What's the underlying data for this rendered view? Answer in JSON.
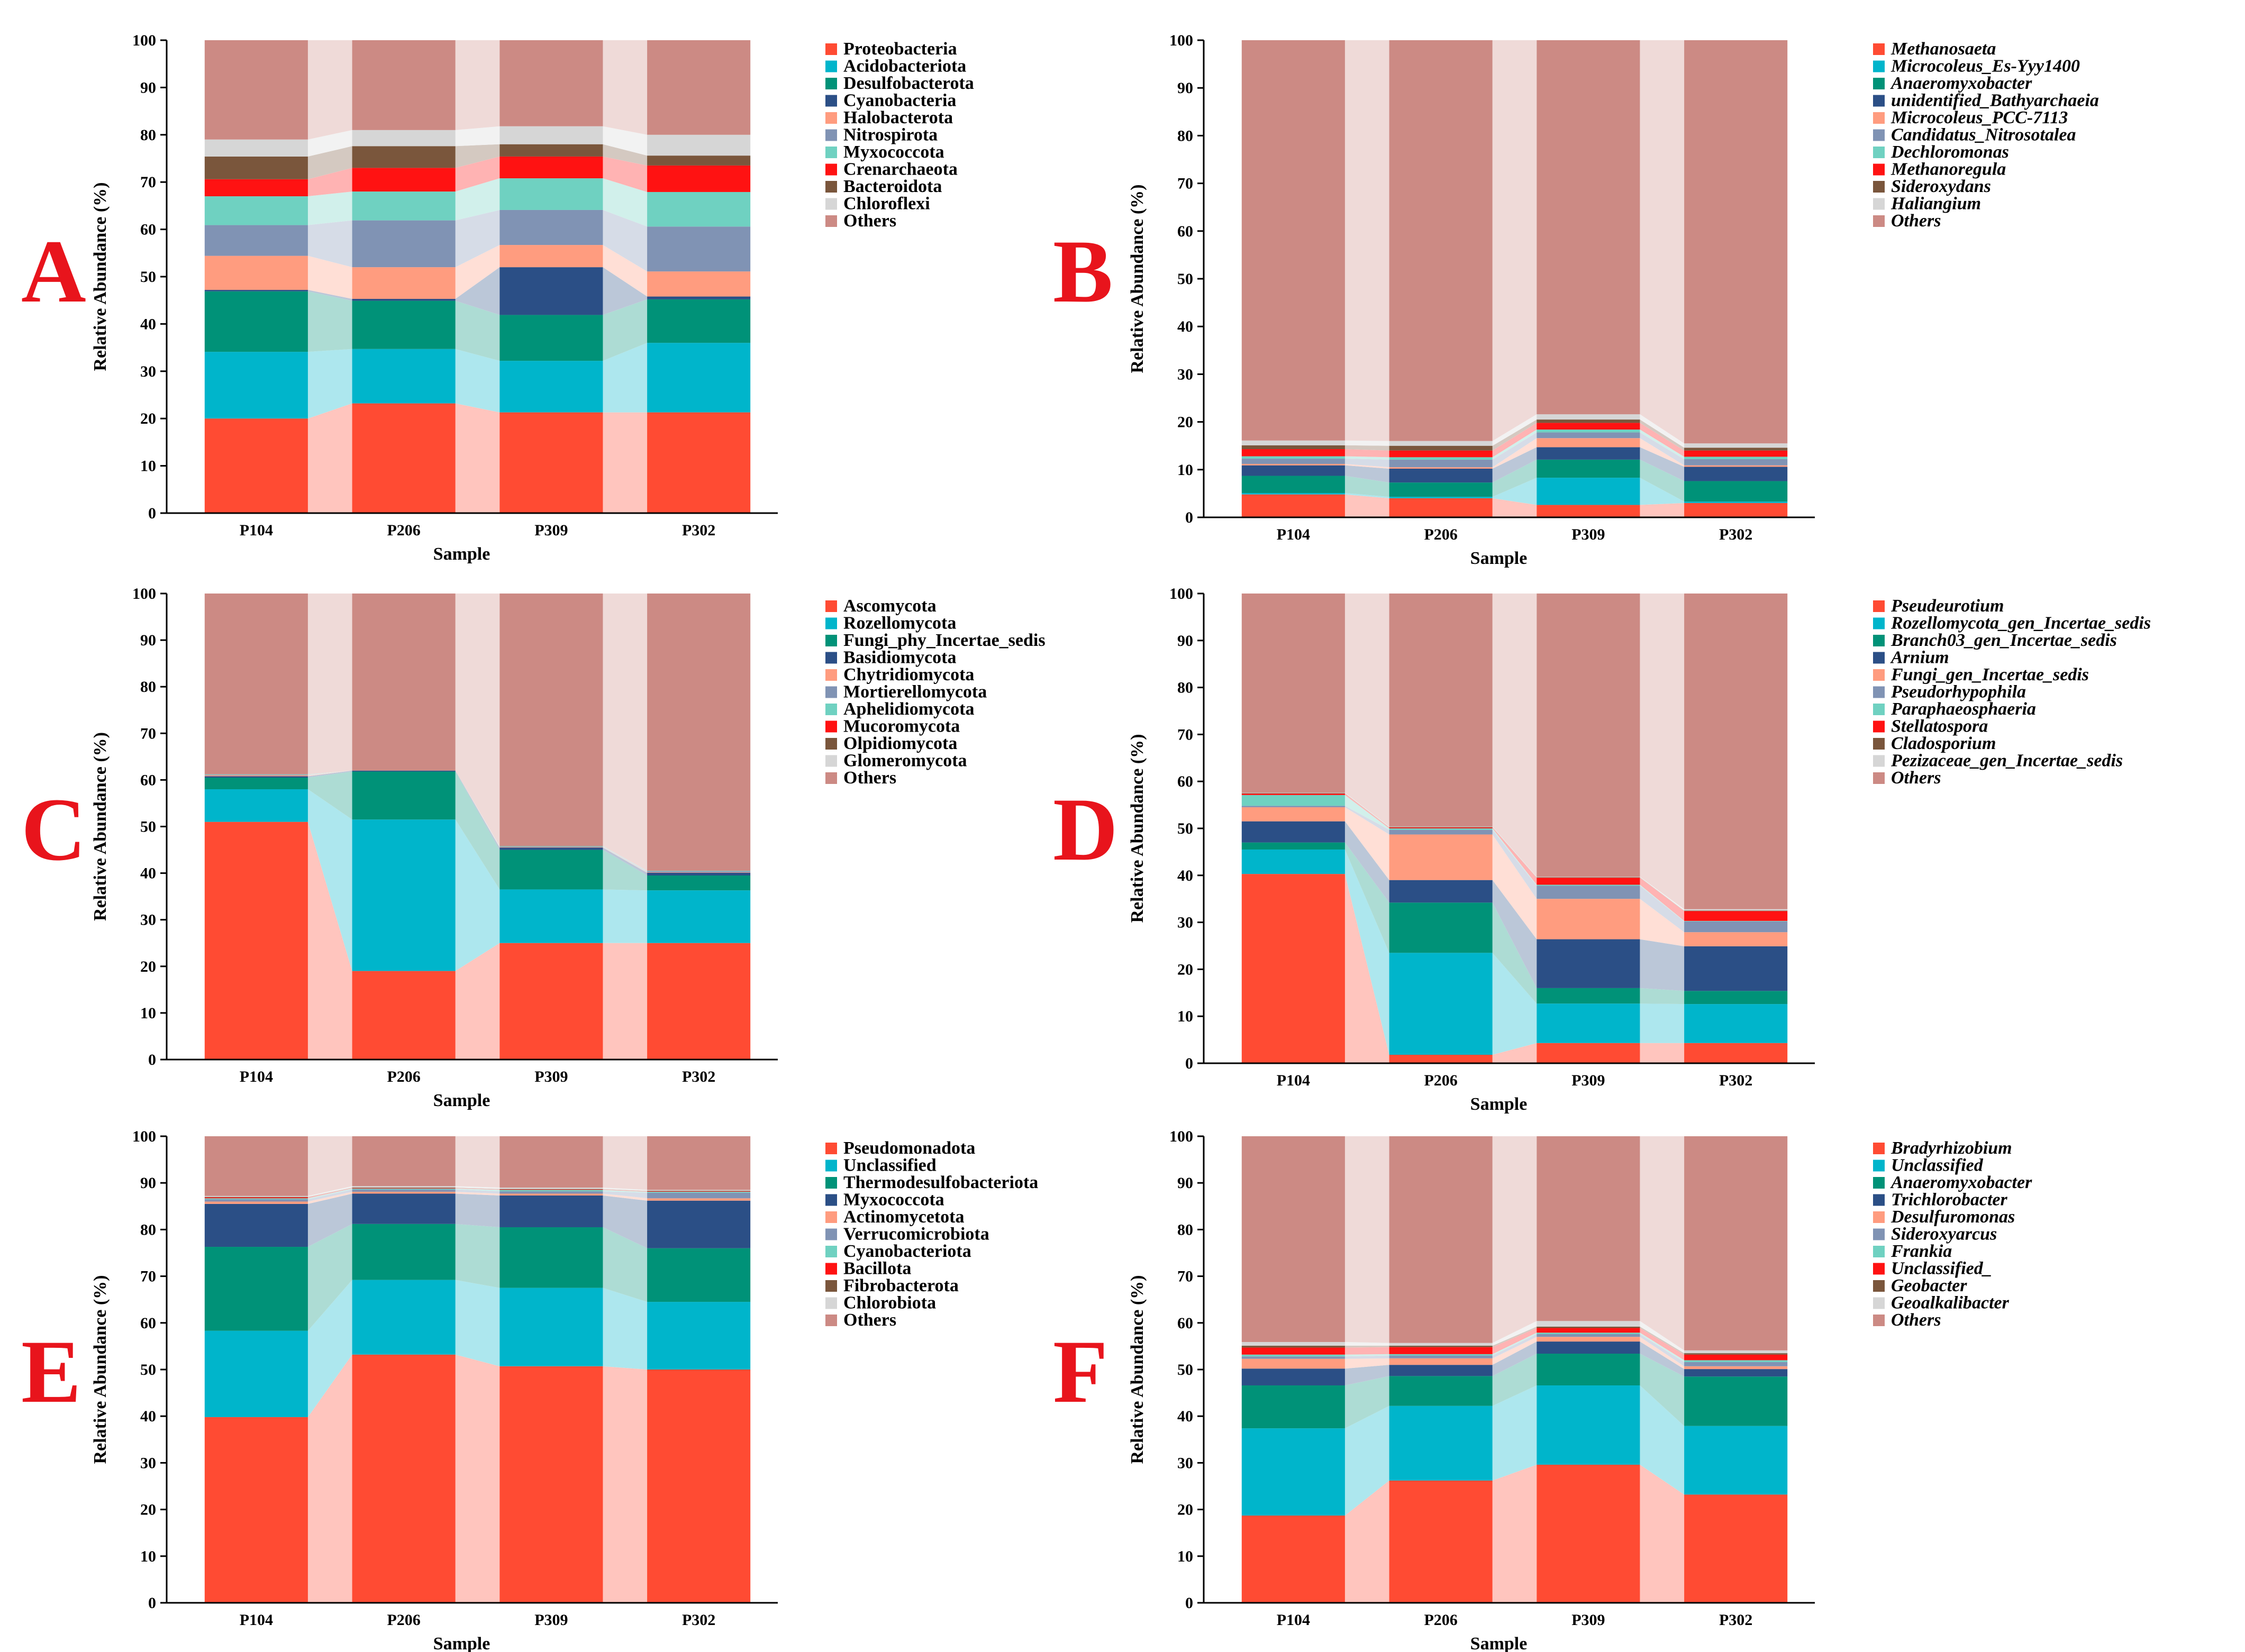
{
  "categories": [
    "P104",
    "P206",
    "P309",
    "P302"
  ],
  "axis": {
    "xlabel": "Sample",
    "ylabel": "Relative Abundance (%)",
    "ylim": [
      0,
      100
    ],
    "ticks": [
      0,
      10,
      20,
      30,
      40,
      50,
      60,
      70,
      80,
      90,
      100
    ]
  },
  "colors": [
    "#ff4b33",
    "#00b5cb",
    "#009278",
    "#2b4f86",
    "#ff9c7f",
    "#8093b4",
    "#6fd1c1",
    "#ff1212",
    "#7a563c",
    "#d6d6d6",
    "#cc8a84"
  ],
  "chart_data": [
    {
      "panel": "A",
      "type": "bar",
      "stacked": true,
      "italic_legend": false,
      "title": "",
      "xlabel": "Sample",
      "ylabel": "Relative Abundance (%)",
      "ylim": [
        0,
        100
      ],
      "categories": [
        "P104",
        "P206",
        "P309",
        "P302"
      ],
      "series": [
        {
          "name": "Proteobacteria",
          "values": [
            20.0,
            23.2,
            21.3,
            21.3
          ]
        },
        {
          "name": "Acidobacteriota",
          "values": [
            14.1,
            11.5,
            10.9,
            14.7
          ]
        },
        {
          "name": "Desulfobacterota",
          "values": [
            12.8,
            10.2,
            9.7,
            9.2
          ]
        },
        {
          "name": "Cyanobacteria",
          "values": [
            0.3,
            0.4,
            10.1,
            0.6
          ]
        },
        {
          "name": "Halobacterota",
          "values": [
            7.2,
            6.7,
            4.7,
            5.3
          ]
        },
        {
          "name": "Nitrospirota",
          "values": [
            6.5,
            9.9,
            7.4,
            9.5
          ]
        },
        {
          "name": "Myxococcota",
          "values": [
            6.1,
            6.1,
            6.7,
            7.3
          ]
        },
        {
          "name": "Crenarchaeota",
          "values": [
            3.6,
            5.0,
            4.6,
            5.6
          ]
        },
        {
          "name": "Bacteroidota",
          "values": [
            4.8,
            4.6,
            2.6,
            2.1
          ]
        },
        {
          "name": "Chloroflexi",
          "values": [
            3.6,
            3.4,
            3.8,
            4.4
          ]
        },
        {
          "name": "Others",
          "values": [
            21.0,
            19.0,
            18.2,
            20.0
          ]
        }
      ]
    },
    {
      "panel": "B",
      "type": "bar",
      "stacked": true,
      "italic_legend": true,
      "title": "",
      "xlabel": "Sample",
      "ylabel": "Relative Abundance (%)",
      "ylim": [
        0,
        100
      ],
      "categories": [
        "P104",
        "P206",
        "P309",
        "P302"
      ],
      "series": [
        {
          "name": "Methanosaeta",
          "values": [
            4.8,
            4.0,
            2.6,
            3.0
          ]
        },
        {
          "name": "Microcoleus_Es-Yyy1400",
          "values": [
            0.3,
            0.3,
            5.7,
            0.3
          ]
        },
        {
          "name": "Anaeromyxobacter",
          "values": [
            3.6,
            3.0,
            3.8,
            4.3
          ]
        },
        {
          "name": "unidentified_Bathyarchaeia",
          "values": [
            2.2,
            2.9,
            2.6,
            3.0
          ]
        },
        {
          "name": "Microcoleus_PCC-7113",
          "values": [
            0.3,
            0.3,
            1.9,
            0.3
          ]
        },
        {
          "name": "Candidatus_Nitrosotalea",
          "values": [
            1.1,
            1.6,
            1.2,
            1.3
          ]
        },
        {
          "name": "Dechloromonas",
          "values": [
            0.5,
            0.5,
            0.6,
            0.5
          ]
        },
        {
          "name": "Methanoregula",
          "values": [
            1.5,
            1.4,
            1.4,
            1.3
          ]
        },
        {
          "name": "Sideroxydans",
          "values": [
            0.8,
            1.0,
            0.7,
            0.6
          ]
        },
        {
          "name": "Haliangium",
          "values": [
            1.0,
            1.0,
            1.1,
            0.9
          ]
        },
        {
          "name": "Others",
          "values": [
            83.9,
            84.0,
            78.4,
            84.5
          ]
        }
      ]
    },
    {
      "panel": "C",
      "type": "bar",
      "stacked": true,
      "italic_legend": false,
      "title": "",
      "xlabel": "Sample",
      "ylabel": "Relative Abundance (%)",
      "ylim": [
        0,
        100
      ],
      "categories": [
        "P104",
        "P206",
        "P309",
        "P302"
      ],
      "series": [
        {
          "name": "Ascomycota",
          "values": [
            51.0,
            19.0,
            25.0,
            25.0
          ]
        },
        {
          "name": "Rozellomycota",
          "values": [
            7.0,
            32.5,
            11.5,
            11.3
          ]
        },
        {
          "name": "Fungi_phy_Incertae_sedis",
          "values": [
            2.5,
            10.3,
            8.5,
            3.2
          ]
        },
        {
          "name": "Basidiomycota",
          "values": [
            0.3,
            0.2,
            0.5,
            0.6
          ]
        },
        {
          "name": "Chytridiomycota",
          "values": [
            0.2,
            0.0,
            0.1,
            0.1
          ]
        },
        {
          "name": "Mortierellomycota",
          "values": [
            0.1,
            0.0,
            0.1,
            0.2
          ]
        },
        {
          "name": "Aphelidiomycota",
          "values": [
            0.1,
            0.0,
            0.1,
            0.1
          ]
        },
        {
          "name": "Mucoromycota",
          "values": [
            0.0,
            0.0,
            0.0,
            0.0
          ]
        },
        {
          "name": "Olpidiomycota",
          "values": [
            0.0,
            0.0,
            0.0,
            0.0
          ]
        },
        {
          "name": "Glomeromycota",
          "values": [
            0.0,
            0.0,
            0.0,
            0.0
          ]
        },
        {
          "name": "Others",
          "values": [
            38.8,
            38.0,
            54.2,
            59.5
          ]
        }
      ]
    },
    {
      "panel": "D",
      "type": "bar",
      "stacked": true,
      "italic_legend": true,
      "title": "",
      "xlabel": "Sample",
      "ylabel": "Relative Abundance (%)",
      "ylim": [
        0,
        100
      ],
      "categories": [
        "P104",
        "P206",
        "P309",
        "P302"
      ],
      "series": [
        {
          "name": "Pseudeurotium",
          "values": [
            40.3,
            1.8,
            4.3,
            4.3
          ]
        },
        {
          "name": "Rozellomycota_gen_Incertae_sedis",
          "values": [
            5.2,
            21.7,
            8.4,
            8.3
          ]
        },
        {
          "name": "Branch03_gen_Incertae_sedis",
          "values": [
            1.5,
            10.7,
            3.3,
            2.8
          ]
        },
        {
          "name": "Arnium",
          "values": [
            4.5,
            4.8,
            10.4,
            9.5
          ]
        },
        {
          "name": "Fungi_gen_Incertae_sedis",
          "values": [
            3.0,
            9.7,
            8.6,
            3.0
          ]
        },
        {
          "name": "Pseudorhypophila",
          "values": [
            0.3,
            1.0,
            2.8,
            2.3
          ]
        },
        {
          "name": "Paraphaeosphaeria",
          "values": [
            2.3,
            0.3,
            0.2,
            0.1
          ]
        },
        {
          "name": "Stellatospora",
          "values": [
            0.3,
            0.2,
            1.5,
            2.1
          ]
        },
        {
          "name": "Cladosporium",
          "values": [
            0.1,
            0.1,
            0.1,
            0.1
          ]
        },
        {
          "name": "Pezizaceae_gen_Incertae_sedis",
          "values": [
            0.1,
            0.1,
            0.1,
            0.3
          ]
        },
        {
          "name": "Others",
          "values": [
            42.4,
            49.6,
            60.3,
            67.2
          ]
        }
      ]
    },
    {
      "panel": "E",
      "type": "bar",
      "stacked": true,
      "italic_legend": false,
      "title": "",
      "xlabel": "Sample",
      "ylabel": "Relative Abundance (%)",
      "ylim": [
        0,
        100
      ],
      "categories": [
        "P104",
        "P206",
        "P309",
        "P302"
      ],
      "series": [
        {
          "name": "Pseudomonadota",
          "values": [
            39.8,
            53.2,
            50.7,
            50.0
          ]
        },
        {
          "name": "Unclassified",
          "values": [
            18.5,
            16.0,
            16.8,
            14.5
          ]
        },
        {
          "name": "Thermodesulfobacteriota",
          "values": [
            18.0,
            12.0,
            13.0,
            11.5
          ]
        },
        {
          "name": "Myxococcota",
          "values": [
            9.2,
            6.5,
            6.8,
            10.2
          ]
        },
        {
          "name": "Actinomycetota",
          "values": [
            0.5,
            0.4,
            0.4,
            0.5
          ]
        },
        {
          "name": "Verrucomicrobiota",
          "values": [
            0.5,
            0.5,
            0.5,
            1.2
          ]
        },
        {
          "name": "Cyanobacteriota",
          "values": [
            0.2,
            0.2,
            0.3,
            0.2
          ]
        },
        {
          "name": "Bacillota",
          "values": [
            0.2,
            0.1,
            0.1,
            0.1
          ]
        },
        {
          "name": "Fibrobacterota",
          "values": [
            0.1,
            0.1,
            0.1,
            0.1
          ]
        },
        {
          "name": "Chlorobiota",
          "values": [
            0.2,
            0.3,
            0.3,
            0.2
          ]
        },
        {
          "name": "Others",
          "values": [
            12.8,
            10.7,
            11.0,
            11.5
          ]
        }
      ]
    },
    {
      "panel": "F",
      "type": "bar",
      "stacked": true,
      "italic_legend": true,
      "title": "",
      "xlabel": "Sample",
      "ylabel": "Relative Abundance (%)",
      "ylim": [
        0,
        100
      ],
      "categories": [
        "P104",
        "P206",
        "P309",
        "P302"
      ],
      "series": [
        {
          "name": "Bradyrhizobium",
          "values": [
            18.7,
            26.2,
            29.6,
            23.2
          ]
        },
        {
          "name": "Unclassified",
          "values": [
            18.7,
            16.0,
            17.0,
            14.7
          ]
        },
        {
          "name": "Anaeromyxobacter",
          "values": [
            9.2,
            6.4,
            6.8,
            10.6
          ]
        },
        {
          "name": "Trichlorobacter",
          "values": [
            3.6,
            2.4,
            2.6,
            1.6
          ]
        },
        {
          "name": "Desulfuromonas",
          "values": [
            2.1,
            1.4,
            1.0,
            0.6
          ]
        },
        {
          "name": "Sideroxyarcus",
          "values": [
            0.5,
            0.6,
            0.6,
            0.9
          ]
        },
        {
          "name": "Frankia",
          "values": [
            0.4,
            0.3,
            0.3,
            0.4
          ]
        },
        {
          "name": "Unclassified_",
          "values": [
            1.5,
            1.5,
            1.0,
            1.2
          ]
        },
        {
          "name": "Geobacter",
          "values": [
            0.4,
            0.3,
            0.3,
            0.3
          ]
        },
        {
          "name": "Geoalkalibacter",
          "values": [
            0.8,
            0.6,
            1.2,
            0.6
          ]
        },
        {
          "name": "Others",
          "values": [
            44.1,
            44.3,
            39.6,
            45.9
          ]
        }
      ]
    }
  ]
}
